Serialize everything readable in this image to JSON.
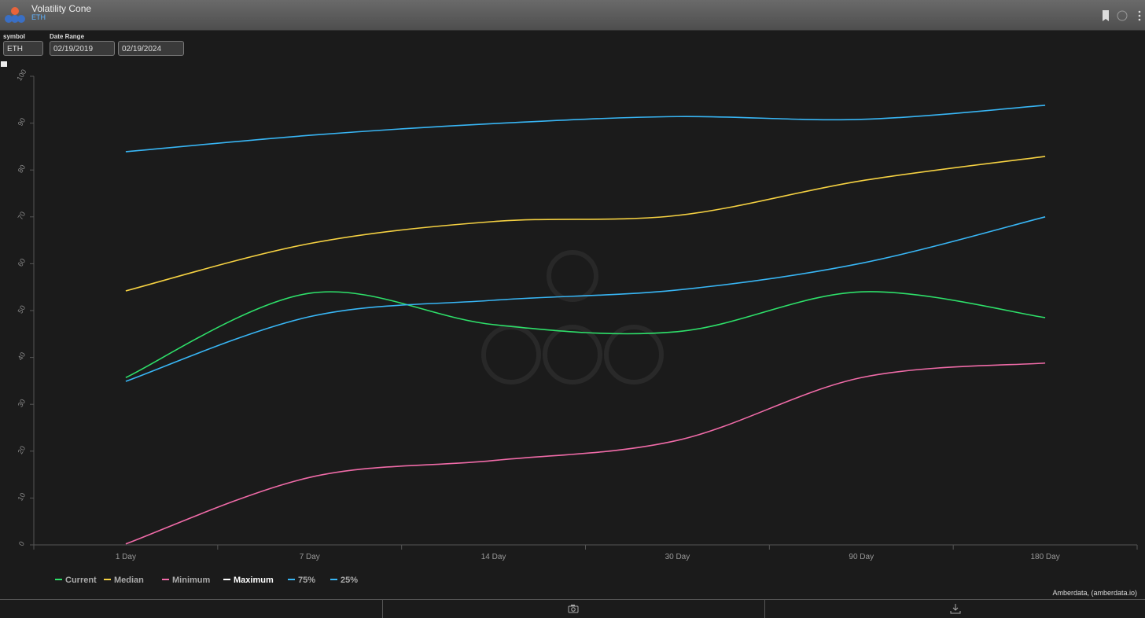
{
  "header": {
    "title": "Volatility Cone",
    "subtitle": "ETH"
  },
  "controls": {
    "symbol_label": "symbol",
    "symbol": "ETH",
    "date_range_label": "Date Range",
    "start_date": "02/19/2019",
    "end_date": "02/19/2024"
  },
  "credit": "Amberdata, (amberdata.io)",
  "chart_data": {
    "type": "line",
    "categories": [
      "1 Day",
      "7 Day",
      "14 Day",
      "30 Day",
      "90 Day",
      "180 Day"
    ],
    "series": [
      {
        "name": "Current",
        "color": "#2ee06a",
        "values": [
          35.7,
          53.7,
          47,
          45.5,
          54,
          48.5
        ]
      },
      {
        "name": "Median",
        "color": "#f5d142",
        "values": [
          54.2,
          64.3,
          69,
          70.3,
          77.7,
          82.9
        ]
      },
      {
        "name": "Minimum",
        "color": "#f06ba8",
        "values": [
          0.2,
          14.4,
          18,
          22.3,
          35.7,
          38.8
        ]
      },
      {
        "name": "Maximum",
        "color": "#ffffff",
        "values": [
          null,
          null,
          null,
          null,
          null,
          null
        ]
      },
      {
        "name": "75%",
        "color": "#38b6f5",
        "values": [
          83.9,
          87.4,
          89.9,
          91.4,
          90.8,
          93.8
        ]
      },
      {
        "name": "25%",
        "color": "#38b6f5",
        "values": [
          34.9,
          48.7,
          52.2,
          54.4,
          60.1,
          70
        ]
      }
    ],
    "ylim": [
      0,
      100
    ],
    "yticks": [
      0,
      10,
      20,
      30,
      40,
      50,
      60,
      70,
      80,
      90,
      100
    ],
    "grid": false
  }
}
